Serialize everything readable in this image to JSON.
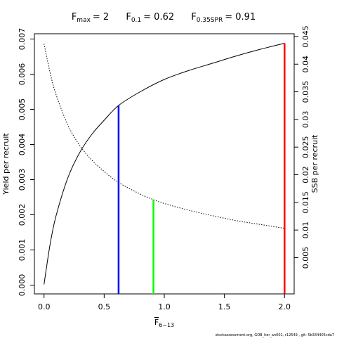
{
  "chart_data": {
    "type": "line",
    "title": {
      "fmax_label": "F",
      "fmax_sub": "max",
      "fmax_value": "= 2",
      "f01_label": "F",
      "f01_sub": "0.1",
      "f01_value": "= 0.62",
      "fspr_label": "F",
      "fspr_sub": "0.35SPR",
      "fspr_value": "= 0.91"
    },
    "xlabel": "F",
    "xlabel_sub": "6−13",
    "ylabel_left": "Yield per recruit",
    "ylabel_right": "SSB per recruit",
    "xlim": [
      -0.08,
      2.08
    ],
    "ylim_left": [
      -0.00025,
      0.00715
    ],
    "ylim_right": [
      -0.00155,
      0.0455
    ],
    "x_ticks": [
      0,
      0.5,
      1,
      1.5,
      2
    ],
    "x_tick_labels": [
      "0.0",
      "0.5",
      "1.0",
      "1.5",
      "2.0"
    ],
    "y_left_ticks": [
      0,
      0.001,
      0.002,
      0.003,
      0.004,
      0.005,
      0.006,
      0.007
    ],
    "y_left_tick_labels": [
      "0.000",
      "0.001",
      "0.002",
      "0.003",
      "0.004",
      "0.005",
      "0.006",
      "0.007"
    ],
    "y_right_ticks": [
      0.005,
      0.01,
      0.015,
      0.02,
      0.025,
      0.03,
      0.035,
      0.04,
      0.045
    ],
    "y_right_tick_labels": [
      "0.005",
      "0.01",
      "0.015",
      "0.02",
      "0.025",
      "0.03",
      "0.035",
      "0.04",
      "0.045"
    ],
    "series": [
      {
        "style": "solid",
        "axis": "left",
        "x": [
          0,
          0.05,
          0.1,
          0.2,
          0.3,
          0.4,
          0.5,
          0.62,
          0.8,
          1.0,
          1.2,
          1.4,
          1.6,
          1.8,
          2.0
        ],
        "y": [
          2e-05,
          0.00115,
          0.00197,
          0.00307,
          0.00379,
          0.0043,
          0.00469,
          0.00511,
          0.0055,
          0.00585,
          0.0061,
          0.00631,
          0.00652,
          0.00671,
          0.00688
        ]
      },
      {
        "style": "dotted",
        "axis": "right",
        "x": [
          0,
          0.05,
          0.1,
          0.2,
          0.3,
          0.4,
          0.5,
          0.62,
          0.8,
          0.91,
          1.0,
          1.2,
          1.4,
          1.6,
          1.8,
          2.0
        ],
        "y": [
          0.0437,
          0.0385,
          0.0345,
          0.0289,
          0.0252,
          0.0226,
          0.0206,
          0.0186,
          0.0165,
          0.0155,
          0.0148,
          0.0136,
          0.0126,
          0.0117,
          0.011,
          0.0103
        ]
      }
    ],
    "reference_lines": [
      {
        "name": "F0.1",
        "x": 0.62,
        "y_left": 0.00511,
        "color": "#0000ff"
      },
      {
        "name": "F0.35SPR",
        "x": 0.91,
        "y_right": 0.0155,
        "color": "#00ff00"
      },
      {
        "name": "Fmax",
        "x": 2.0,
        "y_left": 0.00688,
        "color": "#ff0000"
      }
    ],
    "grid": false,
    "footer": "stockassessment.org, GOB_her_an001, r12549 , git: 5b334405cda7"
  }
}
